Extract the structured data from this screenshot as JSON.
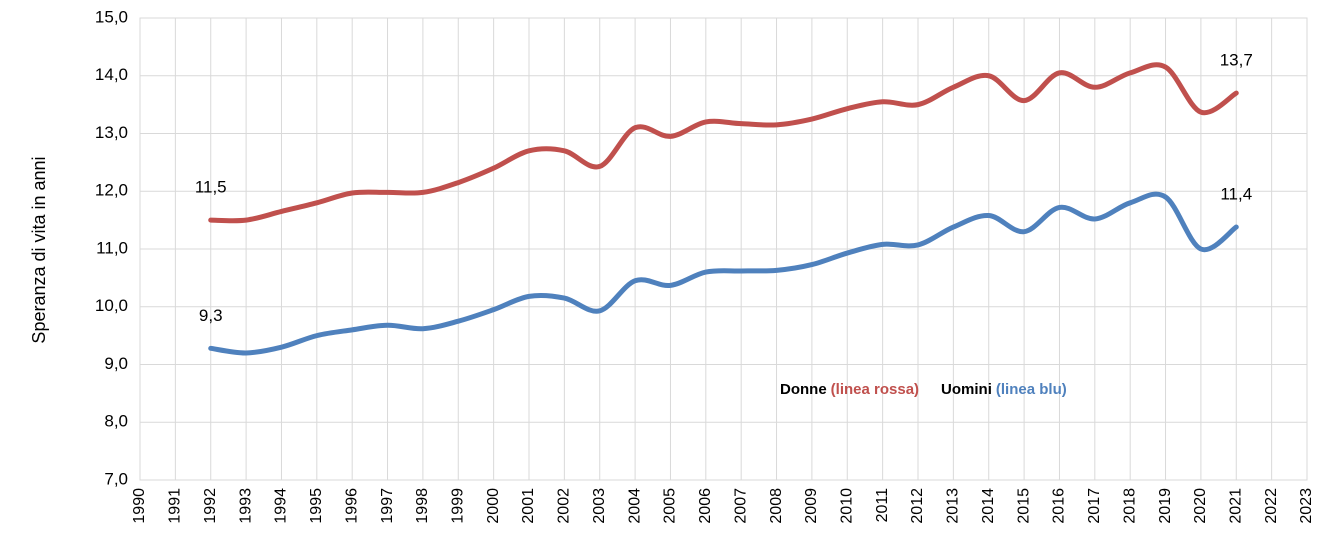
{
  "chart_data": {
    "type": "line",
    "y_label": "Speranza di vita in anni",
    "x": [
      1992,
      1993,
      1994,
      1995,
      1996,
      1997,
      1998,
      1999,
      2000,
      2001,
      2002,
      2003,
      2004,
      2005,
      2006,
      2007,
      2008,
      2009,
      2010,
      2011,
      2012,
      2013,
      2014,
      2015,
      2016,
      2017,
      2018,
      2019,
      2020,
      2021
    ],
    "series": [
      {
        "name": "Donne",
        "note": "(linea rossa)",
        "color": "#c0504d",
        "values": [
          11.5,
          11.5,
          11.65,
          11.8,
          11.97,
          11.98,
          11.98,
          12.15,
          12.4,
          12.7,
          12.7,
          12.43,
          13.1,
          12.95,
          13.2,
          13.17,
          13.15,
          13.25,
          13.43,
          13.55,
          13.5,
          13.8,
          14.0,
          13.57,
          14.05,
          13.8,
          14.05,
          14.15,
          13.37,
          13.7
        ],
        "value_labels": [
          "11,5",
          null,
          null,
          null,
          null,
          null,
          null,
          null,
          null,
          null,
          null,
          null,
          null,
          null,
          null,
          null,
          null,
          null,
          null,
          null,
          null,
          null,
          null,
          null,
          null,
          null,
          null,
          null,
          null,
          "13,7"
        ]
      },
      {
        "name": "Uomini",
        "note": "(linea blu)",
        "color": "#4f81bd",
        "values": [
          9.28,
          9.2,
          9.3,
          9.5,
          9.6,
          9.68,
          9.62,
          9.75,
          9.95,
          10.18,
          10.15,
          9.93,
          10.45,
          10.37,
          10.6,
          10.62,
          10.63,
          10.73,
          10.93,
          11.08,
          11.07,
          11.38,
          11.58,
          11.3,
          11.72,
          11.52,
          11.8,
          11.9,
          11.0,
          11.38
        ],
        "value_labels": [
          "9,3",
          null,
          null,
          null,
          null,
          null,
          null,
          null,
          null,
          null,
          null,
          null,
          null,
          null,
          null,
          null,
          null,
          null,
          null,
          null,
          null,
          null,
          null,
          null,
          null,
          null,
          null,
          null,
          null,
          "11,4"
        ]
      }
    ],
    "xlim": [
      1990,
      2023
    ],
    "xticks": [
      1990,
      1991,
      1992,
      1993,
      1994,
      1995,
      1996,
      1997,
      1998,
      1999,
      2000,
      2001,
      2002,
      2003,
      2004,
      2005,
      2006,
      2007,
      2008,
      2009,
      2010,
      2011,
      2012,
      2013,
      2014,
      2015,
      2016,
      2017,
      2018,
      2019,
      2020,
      2021,
      2022,
      2023
    ],
    "ylim": [
      7,
      15
    ],
    "yticks": [
      {
        "value": 7,
        "label": "7,0"
      },
      {
        "value": 8,
        "label": "8,0"
      },
      {
        "value": 9,
        "label": "9,0"
      },
      {
        "value": 10,
        "label": "10,0"
      },
      {
        "value": 11,
        "label": "11,0"
      },
      {
        "value": 12,
        "label": "12,0"
      },
      {
        "value": 13,
        "label": "13,0"
      },
      {
        "value": 14,
        "label": "14,0"
      },
      {
        "value": 15,
        "label": "15,0"
      }
    ],
    "grid": true
  }
}
